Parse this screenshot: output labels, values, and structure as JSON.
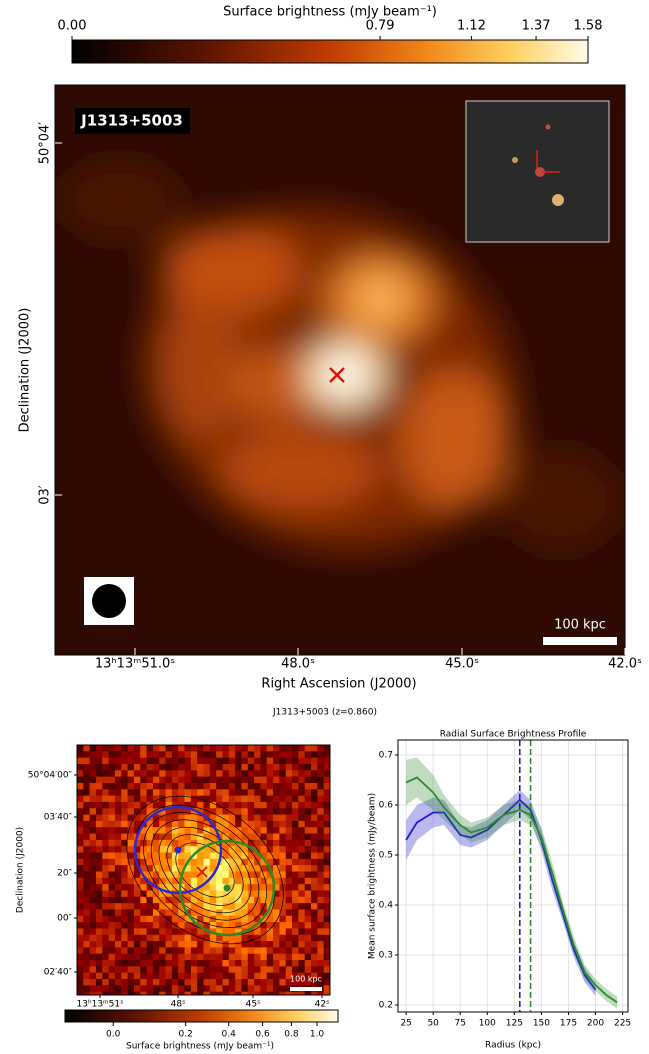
{
  "colorbar": {
    "label": "Surface brightness (mJy beam⁻¹)",
    "lim": [
      0,
      1.58
    ],
    "ticks": [
      {
        "value": 0,
        "label": "0.00"
      },
      0.79,
      1.12,
      1.37,
      1.58
    ]
  },
  "top_image": {
    "label": "J1313+5003",
    "scale_bar": "100 kpc",
    "xlabel": "Right Ascension (J2000)",
    "ylabel": "Declination (J2000)",
    "xticks": [
      "13ʰ13ᵐ51.0ˢ",
      "48.0ˢ",
      "45.0ˢ",
      "42.0ˢ"
    ],
    "yticks": [
      "50°04′",
      "03′"
    ]
  },
  "figure_title": "J1313+5003 (z=0.860)",
  "left_panel": {
    "ylabel": "Declination (J2000)",
    "scale_bar": "100 kpc",
    "xticks": [
      "13ʰ13ᵐ51ˢ",
      "48ˢ",
      "45ˢ",
      "42ˢ"
    ],
    "yticks": [
      "50°04′00″",
      "03′40″",
      "20″",
      "00″",
      "02′40″"
    ],
    "colorbar": {
      "label": "Surface brightness (mJy beam⁻¹)",
      "lim": [
        -0.038,
        1.18
      ],
      "ticks": [
        {
          "value": 0,
          "label": "0.0"
        },
        0.2,
        0.4,
        0.6,
        0.8,
        {
          "value": 1,
          "label": "1.0"
        }
      ]
    }
  },
  "chart_data": {
    "type": "line",
    "title": "Radial Surface Brightness Profile",
    "xlabel": "Radius (kpc)",
    "ylabel": "Mean surface brightness (mJy/beam)",
    "x": [
      25,
      35,
      50,
      60,
      75,
      85,
      100,
      115,
      130,
      140,
      150,
      160,
      170,
      180,
      190,
      200,
      210,
      220
    ],
    "series": [
      {
        "color": "#1a1acc",
        "values": [
          0.53,
          0.565,
          0.585,
          0.585,
          0.54,
          0.535,
          0.55,
          0.58,
          0.61,
          0.59,
          0.53,
          0.45,
          0.38,
          0.31,
          0.26,
          0.23,
          null,
          null
        ],
        "errors": [
          0.04,
          0.035,
          0.03,
          0.025,
          0.02,
          0.02,
          0.02,
          0.02,
          0.02,
          0.02,
          0.02,
          0.02,
          0.015,
          0.015,
          0.015,
          0.012,
          null,
          null
        ]
      },
      {
        "color": "#2e8b2e",
        "values": [
          0.645,
          0.655,
          0.625,
          0.595,
          0.56,
          0.545,
          0.555,
          0.58,
          0.59,
          0.58,
          0.535,
          0.465,
          0.39,
          0.32,
          0.265,
          0.24,
          0.22,
          0.205
        ],
        "errors": [
          0.045,
          0.04,
          0.035,
          0.025,
          0.02,
          0.02,
          0.02,
          0.02,
          0.02,
          0.02,
          0.02,
          0.02,
          0.015,
          0.015,
          0.015,
          0.012,
          0.012,
          0.012
        ]
      }
    ],
    "vlines": [
      {
        "value": 130,
        "color": "#1a1acc"
      },
      {
        "value": 140,
        "color": "#2e8b2e"
      }
    ],
    "xlim": [
      17.5,
      230
    ],
    "ylim": [
      0.186,
      0.73
    ],
    "xticks": [
      25,
      50,
      75,
      100,
      125,
      150,
      175,
      200,
      225
    ],
    "yticks": [
      0.2,
      0.3,
      0.4,
      0.5,
      0.6,
      0.7
    ],
    "grid": true
  }
}
